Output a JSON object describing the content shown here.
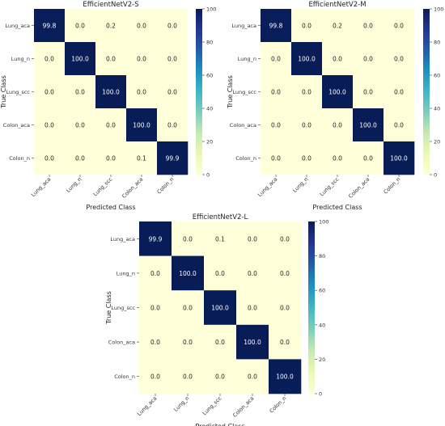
{
  "chart_data": [
    {
      "type": "heatmap",
      "title": "EfficientNetV2-S",
      "xlabel": "Predicted Class",
      "ylabel": "True Class",
      "x_categories": [
        "Lung_aca",
        "Lung_n",
        "Lung_scc",
        "Colon_aca",
        "Colon_n"
      ],
      "y_categories": [
        "Lung_aca",
        "Lung_n",
        "Lung_scc",
        "Colon_aca",
        "Colon_n"
      ],
      "values": [
        [
          99.8,
          0.0,
          0.2,
          0.0,
          0.0
        ],
        [
          0.0,
          100.0,
          0.0,
          0.0,
          0.0
        ],
        [
          0.0,
          0.0,
          100.0,
          0.0,
          0.0
        ],
        [
          0.0,
          0.0,
          0.0,
          100.0,
          0.0
        ],
        [
          0.0,
          0.0,
          0.0,
          0.1,
          99.9
        ]
      ],
      "value_labels": [
        [
          "99.8",
          "0.0",
          "0.2",
          "0.0",
          "0.0"
        ],
        [
          "0.0",
          "100.0",
          "0.0",
          "0.0",
          "0.0"
        ],
        [
          "0.0",
          "0.0",
          "100.0",
          "0.0",
          "0.0"
        ],
        [
          "0.0",
          "0.0",
          "0.0",
          "100.0",
          "0.0"
        ],
        [
          "0.0",
          "0.0",
          "0.0",
          "0.1",
          "99.9"
        ]
      ],
      "colorbar": {
        "range": [
          0,
          100
        ],
        "ticks": [
          "0",
          "20",
          "40",
          "60",
          "80",
          "100"
        ]
      },
      "colormap": {
        "low": "#ffffd9",
        "high": "#081d58"
      }
    },
    {
      "type": "heatmap",
      "title": "EfficientNetV2-M",
      "xlabel": "Predicted Class",
      "ylabel": "True Class",
      "x_categories": [
        "Lung_aca",
        "Lung_n",
        "Lung_scc",
        "Colon_aca",
        "Colon_n"
      ],
      "y_categories": [
        "Lung_aca",
        "Lung_n",
        "Lung_scc",
        "Colon_aca",
        "Colon_n"
      ],
      "values": [
        [
          99.8,
          0.0,
          0.2,
          0.0,
          0.0
        ],
        [
          0.0,
          100.0,
          0.0,
          0.0,
          0.0
        ],
        [
          0.0,
          0.0,
          100.0,
          0.0,
          0.0
        ],
        [
          0.0,
          0.0,
          0.0,
          100.0,
          0.0
        ],
        [
          0.0,
          0.0,
          0.0,
          0.0,
          100.0
        ]
      ],
      "value_labels": [
        [
          "99.8",
          "0.0",
          "0.2",
          "0.0",
          "0.0"
        ],
        [
          "0.0",
          "100.0",
          "0.0",
          "0.0",
          "0.0"
        ],
        [
          "0.0",
          "0.0",
          "100.0",
          "0.0",
          "0.0"
        ],
        [
          "0.0",
          "0.0",
          "0.0",
          "100.0",
          "0.0"
        ],
        [
          "0.0",
          "0.0",
          "0.0",
          "0.0",
          "100.0"
        ]
      ],
      "colorbar": {
        "range": [
          0,
          100
        ],
        "ticks": [
          "0",
          "20",
          "40",
          "60",
          "80",
          "100"
        ]
      },
      "colormap": {
        "low": "#ffffd9",
        "high": "#081d58"
      }
    },
    {
      "type": "heatmap",
      "title": "EfficientNetV2-L",
      "xlabel": "Predicted Class",
      "ylabel": "True Class",
      "x_categories": [
        "Lung_aca",
        "Lung_n",
        "Lung_scc",
        "Colon_aca",
        "Colon_n"
      ],
      "y_categories": [
        "Lung_aca",
        "Lung_n",
        "Lung_scc",
        "Colon_aca",
        "Colon_n"
      ],
      "values": [
        [
          99.9,
          0.0,
          0.1,
          0.0,
          0.0
        ],
        [
          0.0,
          100.0,
          0.0,
          0.0,
          0.0
        ],
        [
          0.0,
          0.0,
          100.0,
          0.0,
          0.0
        ],
        [
          0.0,
          0.0,
          0.0,
          100.0,
          0.0
        ],
        [
          0.0,
          0.0,
          0.0,
          0.0,
          100.0
        ]
      ],
      "value_labels": [
        [
          "99.9",
          "0.0",
          "0.1",
          "0.0",
          "0.0"
        ],
        [
          "0.0",
          "100.0",
          "0.0",
          "0.0",
          "0.0"
        ],
        [
          "0.0",
          "0.0",
          "100.0",
          "0.0",
          "0.0"
        ],
        [
          "0.0",
          "0.0",
          "0.0",
          "100.0",
          "0.0"
        ],
        [
          "0.0",
          "0.0",
          "0.0",
          "0.0",
          "100.0"
        ]
      ],
      "colorbar": {
        "range": [
          0,
          100
        ],
        "ticks": [
          "0",
          "20",
          "40",
          "60",
          "80",
          "100"
        ]
      },
      "colormap": {
        "low": "#ffffd9",
        "high": "#081d58"
      }
    }
  ]
}
